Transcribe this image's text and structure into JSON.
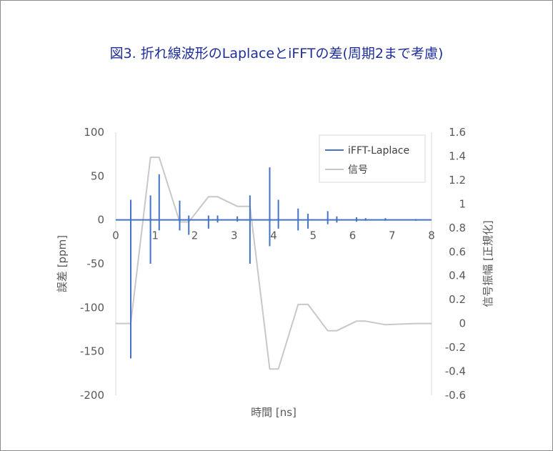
{
  "chart_data": {
    "type": "line",
    "title": "図3. 折れ線波形のLaplaceとiFFTの差(周期2まで考慮)",
    "xlabel": "時間 [ns]",
    "ylabel_left": "誤差 [ppm]",
    "ylabel_right": "信号振幅 [正規化]",
    "xlim": [
      0,
      8
    ],
    "ylim_left": [
      -200,
      100
    ],
    "ylim_right": [
      -0.6,
      1.6
    ],
    "x_ticks": [
      "0",
      "1",
      "2",
      "3",
      "4",
      "5",
      "6",
      "7",
      "8"
    ],
    "y_left_ticks": [
      "100",
      "50",
      "0",
      "-50",
      "-100",
      "-150",
      "-200"
    ],
    "y_right_ticks": [
      "1.6",
      "1.4",
      "1.2",
      "1",
      "0.8",
      "0.6",
      "0.4",
      "0.2",
      "0",
      "-0.2",
      "-0.4",
      "-0.6"
    ],
    "grid": false,
    "legend_position": "top-right",
    "series": [
      {
        "name": "iFFT-Laplace",
        "axis": "left",
        "color": "#4472c4",
        "spikes": [
          {
            "x": 0.38,
            "max": 23,
            "min": -158
          },
          {
            "x": 0.88,
            "max": 28,
            "min": -50
          },
          {
            "x": 1.1,
            "max": 52,
            "min": -12
          },
          {
            "x": 1.62,
            "max": 22,
            "min": -12
          },
          {
            "x": 1.85,
            "max": 5,
            "min": -17
          },
          {
            "x": 2.35,
            "max": 5,
            "min": -10
          },
          {
            "x": 2.58,
            "max": 5,
            "min": -3
          },
          {
            "x": 3.08,
            "max": 4,
            "min": -2
          },
          {
            "x": 3.4,
            "max": 28,
            "min": -50
          },
          {
            "x": 3.9,
            "max": 60,
            "min": -30
          },
          {
            "x": 4.12,
            "max": 23,
            "min": -10
          },
          {
            "x": 4.62,
            "max": 13,
            "min": -12
          },
          {
            "x": 4.87,
            "max": 7,
            "min": -10
          },
          {
            "x": 5.37,
            "max": 10,
            "min": -5
          },
          {
            "x": 5.6,
            "max": 4,
            "min": -3
          },
          {
            "x": 6.1,
            "max": 3,
            "min": -2
          },
          {
            "x": 6.33,
            "max": 2,
            "min": -1
          },
          {
            "x": 6.83,
            "max": 2,
            "min": -1
          },
          {
            "x": 7.6,
            "max": 1,
            "min": -1
          }
        ]
      },
      {
        "name": "信号",
        "axis": "right",
        "color": "#c8c8c8",
        "x": [
          0,
          0.38,
          0.88,
          1.1,
          1.62,
          1.85,
          2.35,
          2.58,
          3.08,
          3.4,
          3.9,
          4.12,
          4.62,
          4.87,
          5.37,
          5.6,
          6.1,
          6.33,
          6.83,
          7.6,
          8
        ],
        "y": [
          0,
          0,
          1.39,
          1.39,
          0.85,
          0.85,
          1.06,
          1.06,
          0.98,
          0.98,
          -0.38,
          -0.38,
          0.16,
          0.16,
          -0.06,
          -0.06,
          0.02,
          0.02,
          -0.01,
          0,
          0
        ]
      }
    ]
  }
}
